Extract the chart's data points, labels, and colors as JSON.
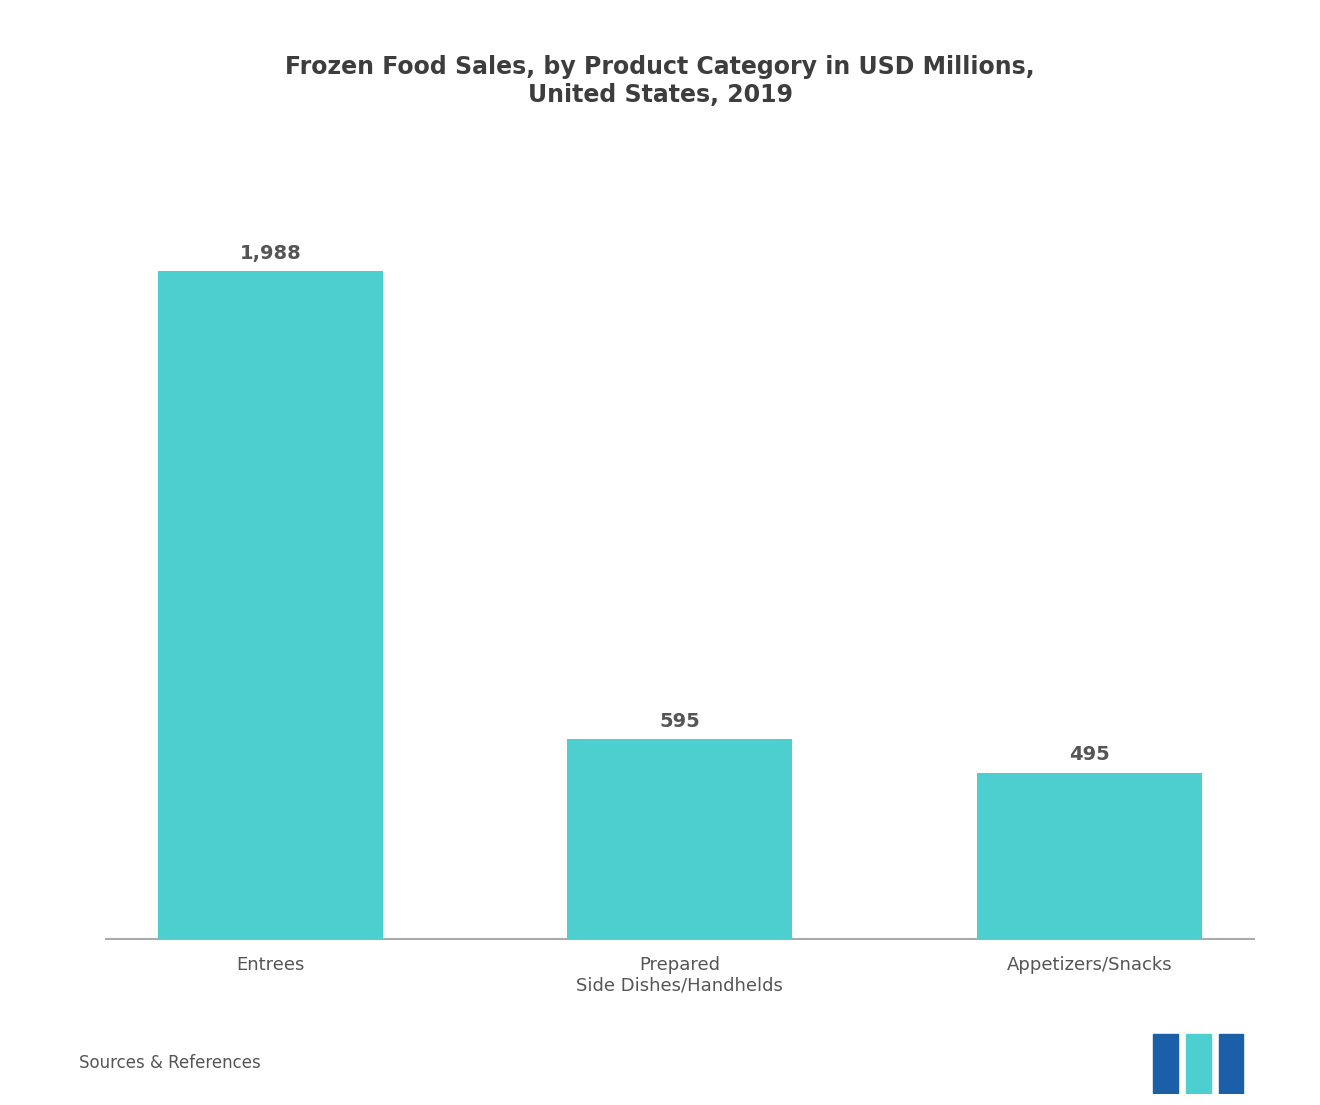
{
  "title_line1": "Frozen Food Sales, by Product Category in USD Millions,",
  "title_line2": "United States, 2019",
  "categories": [
    "Entrees",
    "Prepared\nSide Dishes/Handhelds",
    "Appetizers/Snacks"
  ],
  "values": [
    1988,
    595,
    495
  ],
  "value_labels": [
    "1,988",
    "595",
    "495"
  ],
  "bar_color": "#4ECFCF",
  "background_color": "#ffffff",
  "title_color": "#3d3d3d",
  "label_color": "#555555",
  "axis_color": "#aaaaaa",
  "source_text": "Sources & References",
  "ylim": [
    0,
    2400
  ],
  "bar_width": 0.55,
  "title_fontsize": 17,
  "label_fontsize": 14,
  "tick_fontsize": 13,
  "source_fontsize": 12,
  "logo_color1": "#1a5fa8",
  "logo_color2": "#4ECFCF"
}
